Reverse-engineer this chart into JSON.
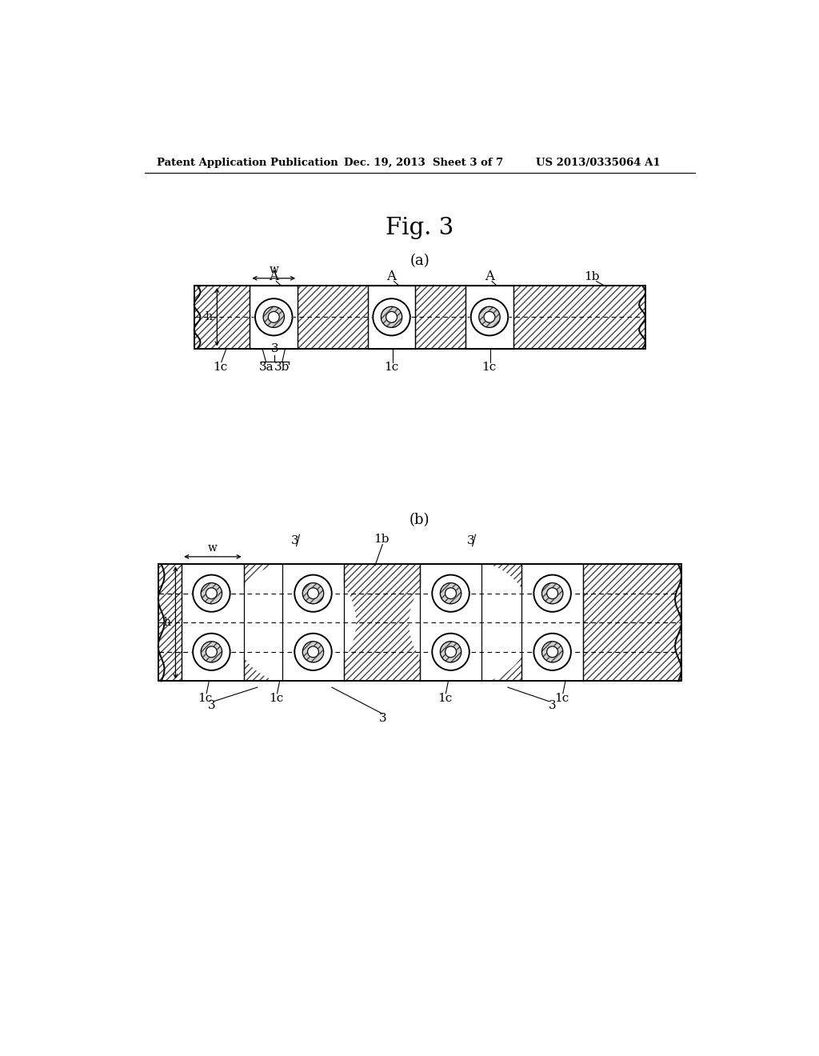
{
  "bg_color": "#ffffff",
  "text_color": "#000000",
  "header_left": "Patent Application Publication",
  "header_mid": "Dec. 19, 2013  Sheet 3 of 7",
  "header_right": "US 2013/0335064 A1",
  "fig_title": "Fig. 3",
  "sub_a": "(a)",
  "sub_b": "(b)"
}
